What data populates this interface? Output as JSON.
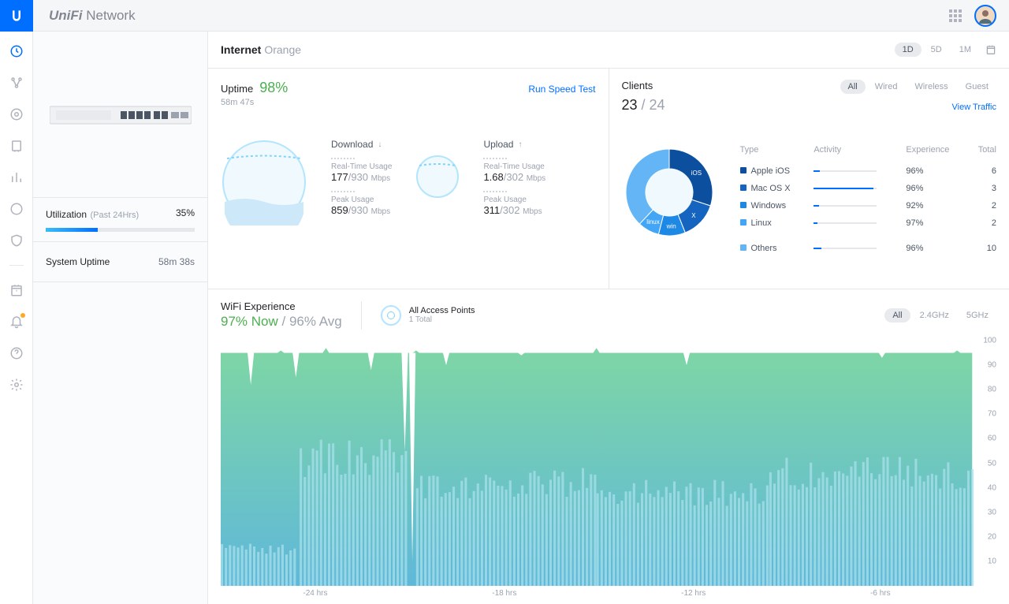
{
  "topbar": {
    "brand_prefix": "UniFi",
    "brand_suffix": "Network"
  },
  "sidebar_icons": [
    "dashboard",
    "topology",
    "devices",
    "clients",
    "stats",
    "insights",
    "security"
  ],
  "device_panel": {
    "utilization_label": "Utilization",
    "utilization_period": "(Past 24Hrs)",
    "utilization_pct": "35%",
    "utilization_fill": 35,
    "system_uptime_label": "System Uptime",
    "system_uptime_value": "58m 38s"
  },
  "internet": {
    "title": "Internet",
    "provider": "Orange",
    "range_tabs": [
      "1D",
      "5D",
      "1M"
    ],
    "range_active": 0,
    "uptime_label": "Uptime",
    "uptime_pct": "98%",
    "uptime_time": "58m 47s",
    "speedtest_link": "Run Speed Test",
    "gauges": {
      "download": {
        "label": "Download",
        "arrow": "↓",
        "realtime_caption": "Real-Time Usage",
        "realtime_value": "177",
        "realtime_max": "/930",
        "realtime_unit": "Mbps",
        "peak_caption": "Peak Usage",
        "peak_value": "859",
        "peak_max": "/930",
        "peak_unit": "Mbps"
      },
      "upload": {
        "label": "Upload",
        "arrow": "↑",
        "realtime_caption": "Real-Time Usage",
        "realtime_value": "1.68",
        "realtime_max": "/302",
        "realtime_unit": "Mbps",
        "peak_caption": "Peak Usage",
        "peak_value": "311",
        "peak_max": "/302",
        "peak_unit": "Mbps"
      }
    }
  },
  "clients": {
    "title": "Clients",
    "active": "23",
    "total": "/ 24",
    "view_traffic": "View Traffic",
    "tabs": [
      "All",
      "Wired",
      "Wireless",
      "Guest"
    ],
    "active_tab": 0,
    "table_headers": {
      "type": "Type",
      "activity": "Activity",
      "experience": "Experience",
      "total": "Total"
    },
    "donut": {
      "slices": [
        {
          "label": "iOS",
          "value": 30,
          "color": "#0b4f9e"
        },
        {
          "label": "X",
          "value": 14,
          "color": "#1565c0"
        },
        {
          "label": "win",
          "value": 10,
          "color": "#1e88e5"
        },
        {
          "label": "linux",
          "value": 8,
          "color": "#42a5f5"
        },
        {
          "label": "",
          "value": 38,
          "color": "#64b5f6"
        }
      ]
    },
    "rows": [
      {
        "color": "#0b4f9e",
        "type": "Apple iOS",
        "activity": 10,
        "experience": "96%",
        "total": "6"
      },
      {
        "color": "#1565c0",
        "type": "Mac OS X",
        "activity": 95,
        "experience": "96%",
        "total": "3"
      },
      {
        "color": "#1e88e5",
        "type": "Windows",
        "activity": 8,
        "experience": "92%",
        "total": "2"
      },
      {
        "color": "#42a5f5",
        "type": "Linux",
        "activity": 6,
        "experience": "97%",
        "total": "2"
      },
      {
        "color": "#64b5f6",
        "type": "Others",
        "activity": 12,
        "experience": "96%",
        "total": "10"
      }
    ]
  },
  "wifi": {
    "title": "WiFi Experience",
    "now_pct": "97% Now",
    "avg_pct": "/ 96% Avg",
    "ap_title": "All Access Points",
    "ap_sub": "1 Total",
    "tabs": [
      "All",
      "2.4GHz",
      "5GHz"
    ],
    "active_tab": 0,
    "chart": {
      "y_ticks": [
        100,
        90,
        80,
        70,
        60,
        50,
        40,
        30,
        20,
        10
      ],
      "x_ticks": [
        "-24 hrs",
        "-18 hrs",
        "-12 hrs",
        "-6 hrs"
      ],
      "area_color_top": "#7ed6a5",
      "area_color_bottom": "#5fb8d9",
      "bar_color": "#a8e0ec",
      "background": "#ffffff",
      "green_baseline": 95,
      "green_dips": [
        {
          "x": 0.04,
          "v": 82
        },
        {
          "x": 0.08,
          "v": 96
        },
        {
          "x": 0.1,
          "v": 85
        },
        {
          "x": 0.14,
          "v": 97
        },
        {
          "x": 0.2,
          "v": 88
        },
        {
          "x": 0.245,
          "v": 55
        },
        {
          "x": 0.255,
          "v": 10
        },
        {
          "x": 0.26,
          "v": 96
        },
        {
          "x": 0.3,
          "v": 90
        },
        {
          "x": 0.4,
          "v": 94
        },
        {
          "x": 0.5,
          "v": 97
        },
        {
          "x": 0.62,
          "v": 90
        },
        {
          "x": 0.75,
          "v": 95
        },
        {
          "x": 0.88,
          "v": 93
        },
        {
          "x": 0.98,
          "v": 96
        }
      ],
      "bars_segments": [
        {
          "start": 0.0,
          "end": 0.1,
          "height": 15
        },
        {
          "start": 0.105,
          "end": 0.245,
          "height": 52
        },
        {
          "start": 0.26,
          "end": 0.5,
          "height": 42
        },
        {
          "start": 0.5,
          "end": 0.73,
          "height": 38
        },
        {
          "start": 0.73,
          "end": 1.0,
          "height": 46
        }
      ]
    }
  }
}
